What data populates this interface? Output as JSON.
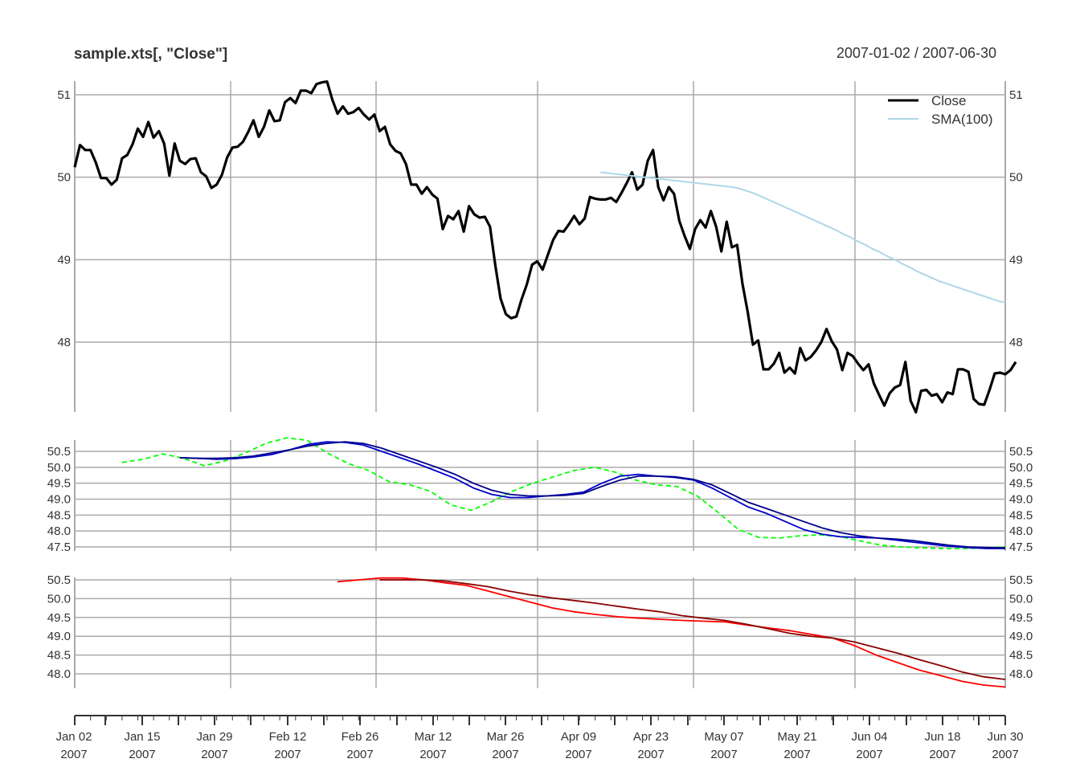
{
  "title": "sample.xts[, \"Close\"]",
  "date_range": "2007-01-02 / 2007-06-30",
  "colors": {
    "close": "#000000",
    "sma100": "#add8e6",
    "green_dashed": "#00ff00",
    "blue1": "#0000cd",
    "blue2": "#00008b",
    "red": "#ff0000",
    "darkred": "#8b0000",
    "grid": "#aaaaaa"
  },
  "legend": [
    {
      "label": "Close",
      "color": "#000000"
    },
    {
      "label": "SMA(100)",
      "color": "#add8e6"
    }
  ],
  "x_axis": {
    "labels": [
      {
        "date": "Jan 02",
        "year": "2007"
      },
      {
        "date": "Jan 15",
        "year": "2007"
      },
      {
        "date": "Jan 29",
        "year": "2007"
      },
      {
        "date": "Feb 12",
        "year": "2007"
      },
      {
        "date": "Feb 26",
        "year": "2007"
      },
      {
        "date": "Mar 12",
        "year": "2007"
      },
      {
        "date": "Mar 26",
        "year": "2007"
      },
      {
        "date": "Apr 09",
        "year": "2007"
      },
      {
        "date": "Apr 23",
        "year": "2007"
      },
      {
        "date": "May 07",
        "year": "2007"
      },
      {
        "date": "May 21",
        "year": "2007"
      },
      {
        "date": "Jun 04",
        "year": "2007"
      },
      {
        "date": "Jun 18",
        "year": "2007"
      },
      {
        "date": "Jun 30",
        "year": "2007"
      }
    ]
  },
  "chart_data": [
    {
      "type": "line",
      "title": "sample.xts[, \"Close\"]",
      "x_range": [
        "2007-01-02",
        "2007-06-30"
      ],
      "ylim": [
        47.15,
        51.2
      ],
      "yticks": [
        "51",
        "50",
        "49",
        "48"
      ],
      "series": [
        {
          "name": "Close",
          "color": "#000000",
          "values": [
            50.12,
            50.39,
            50.33,
            50.33,
            50.18,
            49.99,
            49.99,
            49.91,
            49.97,
            50.23,
            50.27,
            50.4,
            50.59,
            50.49,
            50.67,
            50.48,
            50.56,
            50.41,
            50.02,
            50.41,
            50.2,
            50.16,
            50.22,
            50.23,
            50.06,
            50.01,
            49.87,
            49.91,
            50.03,
            50.24,
            50.36,
            50.37,
            50.43,
            50.55,
            50.69,
            50.49,
            50.61,
            50.81,
            50.68,
            50.69,
            50.91,
            50.96,
            50.9,
            51.05,
            51.05,
            51.02,
            51.13,
            51.15,
            51.16,
            50.94,
            50.77,
            50.86,
            50.77,
            50.79,
            50.84,
            50.76,
            50.7,
            50.76,
            50.56,
            50.61,
            50.4,
            50.32,
            50.29,
            50.16,
            49.91,
            49.91,
            49.8,
            49.88,
            49.79,
            49.74,
            49.37,
            49.53,
            49.49,
            49.59,
            49.34,
            49.65,
            49.55,
            49.51,
            49.52,
            49.4,
            48.93,
            48.53,
            48.34,
            48.29,
            48.31,
            48.52,
            48.7,
            48.94,
            48.98,
            48.88,
            49.06,
            49.24,
            49.35,
            49.34,
            49.43,
            49.53,
            49.43,
            49.5,
            49.76,
            49.74,
            49.73,
            49.73,
            49.75,
            49.7,
            49.81,
            49.93,
            50.06,
            49.85,
            49.91,
            50.2,
            50.33,
            49.88,
            49.72,
            49.88,
            49.8,
            49.47,
            49.29,
            49.13,
            49.37,
            49.48,
            49.39,
            49.59,
            49.4,
            49.1,
            49.46,
            49.15,
            49.18,
            48.71,
            48.37,
            47.97,
            48.02,
            47.67,
            47.67,
            47.74,
            47.87,
            47.63,
            47.69,
            47.62,
            47.93,
            47.78,
            47.82,
            47.9,
            48.0,
            48.16,
            48.01,
            47.91,
            47.66,
            47.87,
            47.83,
            47.74,
            47.66,
            47.73,
            47.5,
            47.36,
            47.23,
            47.38,
            47.45,
            47.48,
            47.76,
            47.29,
            47.15,
            47.41,
            47.42,
            47.35,
            47.37,
            47.27,
            47.39,
            47.37,
            47.67,
            47.67,
            47.64,
            47.31,
            47.25,
            47.24,
            47.42,
            47.62,
            47.63,
            47.61,
            47.66,
            47.76
          ]
        },
        {
          "name": "SMA(100)",
          "color": "#add8e6",
          "x_start_index": 100,
          "values": [
            50.06,
            50.05,
            50.04,
            50.03,
            50.02,
            50.01,
            50.0,
            49.99,
            49.98,
            49.97,
            49.96,
            49.95,
            49.94,
            49.93,
            49.92,
            49.91,
            49.9,
            49.89,
            49.88,
            49.86,
            49.83,
            49.8,
            49.76,
            49.72,
            49.68,
            49.64,
            49.6,
            49.56,
            49.52,
            49.48,
            49.44,
            49.4,
            49.36,
            49.31,
            49.27,
            49.22,
            49.18,
            49.13,
            49.09,
            49.04,
            49.0,
            48.95,
            48.91,
            48.86,
            48.82,
            48.78,
            48.74,
            48.71,
            48.68,
            48.65,
            48.62,
            48.59,
            48.56,
            48.53,
            48.5,
            48.48
          ]
        }
      ]
    },
    {
      "type": "line",
      "ylim": [
        47.45,
        50.9
      ],
      "yticks": [
        "50.5",
        "50.0",
        "49.5",
        "49.0",
        "48.5",
        "48.0",
        "47.5"
      ],
      "series": [
        {
          "color": "#00ff00",
          "style": "dashed",
          "x_start_index": 9,
          "values": [
            50.15,
            50.25,
            50.42,
            50.28,
            50.05,
            50.2,
            50.45,
            50.75,
            50.92,
            50.85,
            50.45,
            50.12,
            49.9,
            49.55,
            49.45,
            49.25,
            48.82,
            48.65,
            48.92,
            49.25,
            49.5,
            49.7,
            49.9,
            50.0,
            49.85,
            49.6,
            49.45,
            49.4,
            49.1,
            48.6,
            48.05,
            47.8,
            47.78,
            47.85,
            47.88,
            47.82,
            47.68,
            47.55,
            47.5,
            47.47,
            47.45,
            47.45,
            47.47,
            47.5
          ]
        },
        {
          "color": "#0000cd",
          "x_start_index": 20,
          "values": [
            50.3,
            50.28,
            50.25,
            50.27,
            50.32,
            50.4,
            50.55,
            50.72,
            50.8,
            50.78,
            50.7,
            50.5,
            50.3,
            50.1,
            49.88,
            49.65,
            49.35,
            49.15,
            49.05,
            49.05,
            49.1,
            49.15,
            49.22,
            49.5,
            49.72,
            49.78,
            49.72,
            49.68,
            49.6,
            49.35,
            49.05,
            48.75,
            48.55,
            48.3,
            48.05,
            47.9,
            47.82,
            47.8,
            47.78,
            47.72,
            47.65,
            47.58,
            47.52,
            47.48,
            47.45,
            47.45
          ]
        },
        {
          "color": "#00008b",
          "x_start_index": 20,
          "values": [
            50.3,
            50.28,
            50.28,
            50.3,
            50.35,
            50.45,
            50.55,
            50.67,
            50.75,
            50.8,
            50.75,
            50.6,
            50.4,
            50.2,
            50.0,
            49.78,
            49.5,
            49.28,
            49.15,
            49.1,
            49.1,
            49.12,
            49.18,
            49.4,
            49.6,
            49.72,
            49.72,
            49.7,
            49.62,
            49.45,
            49.18,
            48.9,
            48.7,
            48.5,
            48.3,
            48.1,
            47.95,
            47.85,
            47.78,
            47.75,
            47.7,
            47.62,
            47.55,
            47.5,
            47.48,
            47.47
          ]
        }
      ]
    },
    {
      "type": "line",
      "ylim": [
        47.65,
        50.65
      ],
      "yticks": [
        "50.5",
        "50.0",
        "49.5",
        "49.0",
        "48.5",
        "48.0"
      ],
      "series": [
        {
          "color": "#ff0000",
          "x_start_index": 50,
          "values": [
            50.45,
            50.5,
            50.55,
            50.55,
            50.5,
            50.42,
            50.35,
            50.2,
            50.05,
            49.9,
            49.75,
            49.65,
            49.58,
            49.52,
            49.48,
            49.45,
            49.42,
            49.4,
            49.38,
            49.3,
            49.22,
            49.15,
            49.05,
            48.95,
            48.75,
            48.5,
            48.3,
            48.1,
            47.95,
            47.8,
            47.7,
            47.65
          ]
        },
        {
          "color": "#8b0000",
          "x_start_index": 58,
          "values": [
            50.5,
            50.5,
            50.5,
            50.47,
            50.4,
            50.32,
            50.2,
            50.1,
            50.02,
            49.95,
            49.88,
            49.8,
            49.72,
            49.65,
            49.55,
            49.48,
            49.42,
            49.32,
            49.2,
            49.08,
            49.0,
            48.95,
            48.85,
            48.7,
            48.55,
            48.38,
            48.22,
            48.05,
            47.92,
            47.85
          ]
        }
      ]
    }
  ]
}
